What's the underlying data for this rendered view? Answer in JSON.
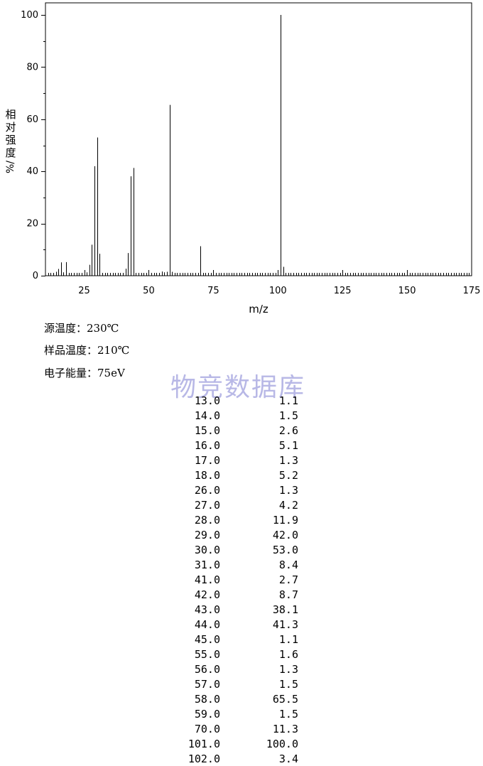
{
  "chart_data": {
    "type": "bar",
    "xlabel": "m/z",
    "ylabel_chars": [
      "相",
      "对",
      "强",
      "度"
    ],
    "ylabel_unit": "%/",
    "xlim": [
      10,
      175
    ],
    "ylim": [
      0,
      100
    ],
    "x_ticks": [
      25,
      50,
      75,
      100,
      125,
      150,
      175
    ],
    "y_ticks": [
      0,
      20,
      40,
      60,
      80,
      100
    ],
    "grid": false,
    "x": [
      13,
      14,
      15,
      16,
      17,
      18,
      26,
      27,
      28,
      29,
      30,
      31,
      41,
      42,
      43,
      44,
      45,
      55,
      56,
      57,
      58,
      59,
      70,
      101,
      102
    ],
    "values": [
      1.1,
      1.5,
      2.6,
      5.1,
      1.3,
      5.2,
      1.3,
      4.2,
      11.9,
      42.0,
      53.0,
      8.4,
      2.7,
      8.7,
      38.1,
      41.3,
      1.1,
      1.6,
      1.3,
      1.5,
      65.5,
      1.5,
      11.3,
      100.0,
      3.4
    ]
  },
  "conditions": {
    "source_temp": "源温度：230℃",
    "sample_temp": "样品温度：210℃",
    "electron_energy": "电子能量：75eV"
  },
  "watermark": "物竞数据库",
  "peak_table": [
    {
      "mz": "13.0",
      "rel": "1.1"
    },
    {
      "mz": "14.0",
      "rel": "1.5"
    },
    {
      "mz": "15.0",
      "rel": "2.6"
    },
    {
      "mz": "16.0",
      "rel": "5.1"
    },
    {
      "mz": "17.0",
      "rel": "1.3"
    },
    {
      "mz": "18.0",
      "rel": "5.2"
    },
    {
      "mz": "26.0",
      "rel": "1.3"
    },
    {
      "mz": "27.0",
      "rel": "4.2"
    },
    {
      "mz": "28.0",
      "rel": "11.9"
    },
    {
      "mz": "29.0",
      "rel": "42.0"
    },
    {
      "mz": "30.0",
      "rel": "53.0"
    },
    {
      "mz": "31.0",
      "rel": "8.4"
    },
    {
      "mz": "41.0",
      "rel": "2.7"
    },
    {
      "mz": "42.0",
      "rel": "8.7"
    },
    {
      "mz": "43.0",
      "rel": "38.1"
    },
    {
      "mz": "44.0",
      "rel": "41.3"
    },
    {
      "mz": "45.0",
      "rel": "1.1"
    },
    {
      "mz": "55.0",
      "rel": "1.6"
    },
    {
      "mz": "56.0",
      "rel": "1.3"
    },
    {
      "mz": "57.0",
      "rel": "1.5"
    },
    {
      "mz": "58.0",
      "rel": "65.5"
    },
    {
      "mz": "59.0",
      "rel": "1.5"
    },
    {
      "mz": "70.0",
      "rel": "11.3"
    },
    {
      "mz": "101.0",
      "rel": "100.0"
    },
    {
      "mz": "102.0",
      "rel": "3.4"
    }
  ]
}
